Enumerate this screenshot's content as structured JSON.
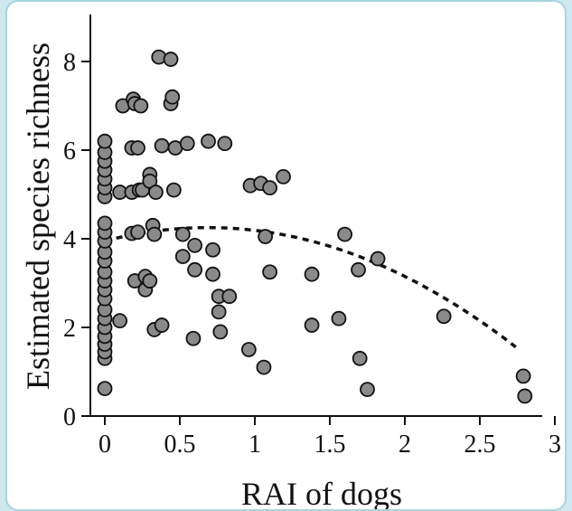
{
  "chart_data": {
    "type": "scatter",
    "title": "",
    "xlabel": "RAI of dogs",
    "ylabel": "Estimated species richness",
    "xlim": [
      0,
      3
    ],
    "ylim": [
      0,
      9
    ],
    "x_ticks": [
      0,
      0.5,
      1,
      1.5,
      2,
      2.5,
      3
    ],
    "x_tick_labels": [
      "0",
      "0.5",
      "1",
      "1.5",
      "2",
      "2.5",
      "3"
    ],
    "y_ticks": [
      0,
      2,
      4,
      6,
      8
    ],
    "y_tick_labels": [
      "0",
      "2",
      "4",
      "6",
      "8"
    ],
    "grid": false,
    "legend": "none",
    "colors": {
      "point_fill": "#8a8a8a",
      "point_stroke": "#111111",
      "curve": "#111111"
    },
    "points": [
      [
        0,
        0.62
      ],
      [
        0,
        1.3
      ],
      [
        0,
        1.45
      ],
      [
        0,
        1.62
      ],
      [
        0,
        1.8
      ],
      [
        0,
        2.0
      ],
      [
        0,
        2.2
      ],
      [
        0,
        2.4
      ],
      [
        0,
        2.65
      ],
      [
        0,
        2.85
      ],
      [
        0,
        3.05
      ],
      [
        0,
        3.25
      ],
      [
        0,
        3.5
      ],
      [
        0,
        3.7
      ],
      [
        0,
        3.95
      ],
      [
        0,
        4.15
      ],
      [
        0,
        4.35
      ],
      [
        0,
        4.95
      ],
      [
        0,
        5.15
      ],
      [
        0,
        5.35
      ],
      [
        0,
        5.55
      ],
      [
        0,
        5.75
      ],
      [
        0,
        5.95
      ],
      [
        0,
        6.2
      ],
      [
        0.1,
        2.15
      ],
      [
        0.1,
        5.05
      ],
      [
        0.12,
        7.0
      ],
      [
        0.18,
        4.12
      ],
      [
        0.18,
        5.05
      ],
      [
        0.18,
        6.05
      ],
      [
        0.19,
        7.15
      ],
      [
        0.2,
        3.05
      ],
      [
        0.2,
        7.05
      ],
      [
        0.22,
        6.05
      ],
      [
        0.22,
        4.15
      ],
      [
        0.23,
        5.1
      ],
      [
        0.24,
        7.0
      ],
      [
        0.25,
        5.1
      ],
      [
        0.27,
        3.15
      ],
      [
        0.27,
        2.85
      ],
      [
        0.3,
        5.45
      ],
      [
        0.3,
        3.05
      ],
      [
        0.3,
        5.3
      ],
      [
        0.32,
        4.3
      ],
      [
        0.33,
        1.95
      ],
      [
        0.33,
        4.1
      ],
      [
        0.34,
        5.05
      ],
      [
        0.36,
        8.1
      ],
      [
        0.38,
        2.05
      ],
      [
        0.38,
        6.1
      ],
      [
        0.44,
        7.05
      ],
      [
        0.44,
        8.05
      ],
      [
        0.45,
        7.2
      ],
      [
        0.46,
        5.1
      ],
      [
        0.47,
        6.05
      ],
      [
        0.52,
        4.1
      ],
      [
        0.52,
        3.6
      ],
      [
        0.55,
        6.15
      ],
      [
        0.59,
        1.75
      ],
      [
        0.6,
        3.85
      ],
      [
        0.6,
        3.3
      ],
      [
        0.69,
        6.2
      ],
      [
        0.72,
        3.75
      ],
      [
        0.72,
        3.2
      ],
      [
        0.76,
        2.7
      ],
      [
        0.76,
        2.35
      ],
      [
        0.77,
        1.9
      ],
      [
        0.8,
        6.15
      ],
      [
        0.83,
        2.7
      ],
      [
        0.96,
        1.5
      ],
      [
        0.97,
        5.2
      ],
      [
        1.04,
        5.25
      ],
      [
        1.06,
        1.1
      ],
      [
        1.07,
        4.05
      ],
      [
        1.1,
        3.25
      ],
      [
        1.1,
        5.15
      ],
      [
        1.19,
        5.4
      ],
      [
        1.38,
        3.2
      ],
      [
        1.38,
        2.05
      ],
      [
        1.56,
        2.2
      ],
      [
        1.6,
        4.1
      ],
      [
        1.69,
        3.3
      ],
      [
        1.7,
        1.3
      ],
      [
        1.75,
        0.6
      ],
      [
        1.82,
        3.55
      ],
      [
        2.26,
        2.25
      ],
      [
        2.79,
        0.9
      ],
      [
        2.8,
        0.45
      ]
    ],
    "fit_curve": {
      "type": "quadratic",
      "style": "dashed",
      "coefficients": {
        "a": -0.64,
        "b": 0.88,
        "c": 3.95
      }
    }
  }
}
